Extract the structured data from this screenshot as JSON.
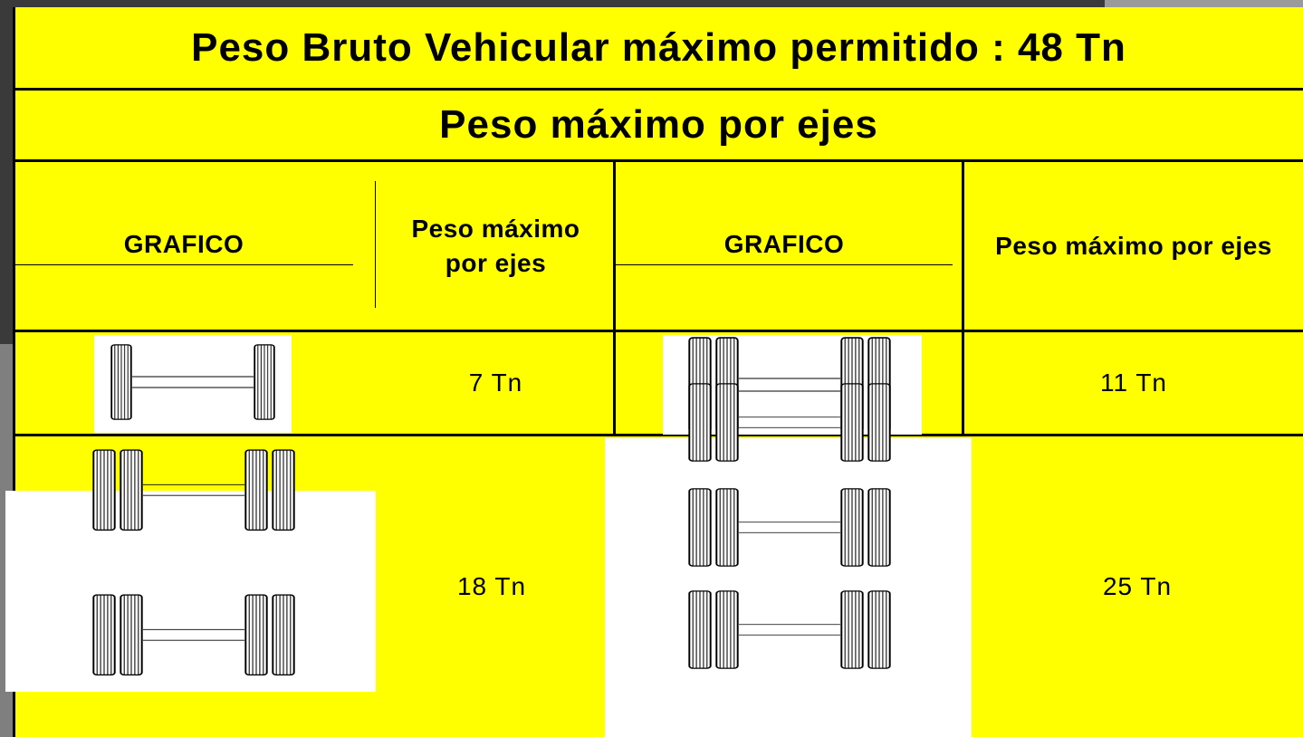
{
  "title": "Peso Bruto Vehicular máximo permitido : 48 Tn",
  "subtitle": "Peso máximo por ejes",
  "table": {
    "header": [
      "GRAFICO",
      "Peso máximo por ejes",
      "GRAFICO",
      "Peso máximo por ejes"
    ],
    "rows": [
      [
        "7 Tn",
        "11 Tn"
      ],
      [
        "18 Tn",
        "25 Tn"
      ]
    ]
  }
}
